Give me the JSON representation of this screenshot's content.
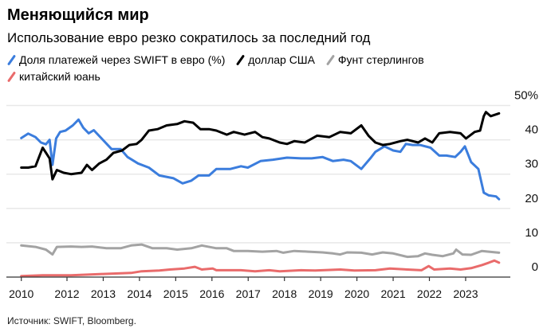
{
  "header": {
    "title": "Меняющийся мир",
    "subtitle": "Использование евро резко сократилось за последний год"
  },
  "source": "Источник: SWIFT, Bloomberg.",
  "chart_data": {
    "type": "line",
    "title": "Меняющийся мир",
    "subtitle": "Использование евро резко сократилось за последний год",
    "ylim": [
      0,
      50
    ],
    "y_ticks": [
      {
        "v": 50,
        "label": "50%"
      },
      {
        "v": 40,
        "label": "40"
      },
      {
        "v": 30,
        "label": "30"
      },
      {
        "v": 20,
        "label": "20"
      },
      {
        "v": 10,
        "label": "10"
      },
      {
        "v": 0,
        "label": "0"
      }
    ],
    "x_ticks": [
      {
        "x": 2010.74,
        "label": "2010"
      },
      {
        "x": 2012,
        "label": "2012"
      },
      {
        "x": 2013,
        "label": "2013"
      },
      {
        "x": 2014,
        "label": "2014"
      },
      {
        "x": 2015,
        "label": "2015"
      },
      {
        "x": 2016,
        "label": "2016"
      },
      {
        "x": 2017,
        "label": "2017"
      },
      {
        "x": 2018,
        "label": "2018"
      },
      {
        "x": 2019,
        "label": "2019"
      },
      {
        "x": 2020,
        "label": "2020"
      },
      {
        "x": 2021,
        "label": "2021"
      },
      {
        "x": 2022,
        "label": "2022"
      },
      {
        "x": 2023,
        "label": "2023"
      }
    ],
    "grid": true,
    "legend_position": "top",
    "series": [
      {
        "name": "Доля платежей через SWIFT в евро (%)",
        "color": "#3b7ddd",
        "points": [
          [
            2010.74,
            40.5
          ],
          [
            2010.93,
            41.8
          ],
          [
            2011.13,
            40.8
          ],
          [
            2011.28,
            39.2
          ],
          [
            2011.42,
            38.7
          ],
          [
            2011.52,
            40
          ],
          [
            2011.6,
            32.7
          ],
          [
            2011.7,
            40.4
          ],
          [
            2011.81,
            42.3
          ],
          [
            2011.96,
            42.7
          ],
          [
            2012.16,
            44.2
          ],
          [
            2012.32,
            45.9
          ],
          [
            2012.45,
            43.5
          ],
          [
            2012.6,
            41.9
          ],
          [
            2012.74,
            42.8
          ],
          [
            2012.99,
            40
          ],
          [
            2013.23,
            37.3
          ],
          [
            2013.48,
            37.3
          ],
          [
            2013.67,
            35
          ],
          [
            2013.96,
            33.1
          ],
          [
            2014.26,
            31.9
          ],
          [
            2014.55,
            29.6
          ],
          [
            2014.94,
            28.8
          ],
          [
            2015.19,
            27.3
          ],
          [
            2015.43,
            28.1
          ],
          [
            2015.63,
            29.6
          ],
          [
            2015.92,
            29.6
          ],
          [
            2016.12,
            31.5
          ],
          [
            2016.51,
            31.5
          ],
          [
            2016.8,
            32.3
          ],
          [
            2016.99,
            31.9
          ],
          [
            2017.34,
            33.8
          ],
          [
            2017.68,
            34.2
          ],
          [
            2018.07,
            34.8
          ],
          [
            2018.46,
            34.6
          ],
          [
            2018.75,
            34.6
          ],
          [
            2019.05,
            35
          ],
          [
            2019.34,
            33.8
          ],
          [
            2019.63,
            34.2
          ],
          [
            2019.83,
            33.8
          ],
          [
            2020.12,
            31.5
          ],
          [
            2020.37,
            34.6
          ],
          [
            2020.51,
            36.5
          ],
          [
            2020.76,
            38.1
          ],
          [
            2021.0,
            36.9
          ],
          [
            2021.2,
            36.5
          ],
          [
            2021.35,
            38.8
          ],
          [
            2021.54,
            38.5
          ],
          [
            2021.74,
            38.5
          ],
          [
            2022.03,
            37.7
          ],
          [
            2022.27,
            35.4
          ],
          [
            2022.47,
            35.4
          ],
          [
            2022.71,
            35
          ],
          [
            2022.86,
            36.5
          ],
          [
            2022.98,
            38.1
          ],
          [
            2023.15,
            33.5
          ],
          [
            2023.35,
            31.5
          ],
          [
            2023.5,
            24.6
          ],
          [
            2023.64,
            23.8
          ],
          [
            2023.84,
            23.5
          ],
          [
            2023.92,
            22.7
          ]
        ]
      },
      {
        "name": "доллар США",
        "color": "#000000",
        "points": [
          [
            2010.74,
            31.9
          ],
          [
            2010.93,
            31.9
          ],
          [
            2011.13,
            32.3
          ],
          [
            2011.33,
            37.7
          ],
          [
            2011.52,
            34.6
          ],
          [
            2011.6,
            28.5
          ],
          [
            2011.72,
            31.2
          ],
          [
            2011.91,
            30.4
          ],
          [
            2012.11,
            30
          ],
          [
            2012.4,
            30.4
          ],
          [
            2012.55,
            32.7
          ],
          [
            2012.69,
            31.2
          ],
          [
            2012.89,
            33.1
          ],
          [
            2013.09,
            34.2
          ],
          [
            2013.28,
            36.2
          ],
          [
            2013.52,
            36.9
          ],
          [
            2013.72,
            38.5
          ],
          [
            2013.92,
            38.8
          ],
          [
            2014.06,
            40
          ],
          [
            2014.26,
            42.7
          ],
          [
            2014.5,
            43.1
          ],
          [
            2014.75,
            44.2
          ],
          [
            2015.04,
            44.6
          ],
          [
            2015.24,
            45.4
          ],
          [
            2015.48,
            45
          ],
          [
            2015.68,
            43.1
          ],
          [
            2015.92,
            43.1
          ],
          [
            2016.12,
            42.7
          ],
          [
            2016.41,
            41.5
          ],
          [
            2016.6,
            42.3
          ],
          [
            2016.9,
            41.5
          ],
          [
            2017.19,
            42.3
          ],
          [
            2017.39,
            40.8
          ],
          [
            2017.58,
            40.4
          ],
          [
            2017.87,
            39.2
          ],
          [
            2018.07,
            38.8
          ],
          [
            2018.27,
            39.6
          ],
          [
            2018.56,
            39.2
          ],
          [
            2018.9,
            41.2
          ],
          [
            2019.24,
            40.8
          ],
          [
            2019.54,
            42.3
          ],
          [
            2019.83,
            41.9
          ],
          [
            2020.12,
            44.2
          ],
          [
            2020.32,
            41.2
          ],
          [
            2020.51,
            39.2
          ],
          [
            2020.71,
            38.5
          ],
          [
            2020.91,
            38.8
          ],
          [
            2021.2,
            39.6
          ],
          [
            2021.39,
            40
          ],
          [
            2021.69,
            39.2
          ],
          [
            2021.88,
            40.4
          ],
          [
            2022.08,
            39.2
          ],
          [
            2022.27,
            41.9
          ],
          [
            2022.57,
            42.3
          ],
          [
            2022.86,
            41.9
          ],
          [
            2023.01,
            40.4
          ],
          [
            2023.25,
            42.3
          ],
          [
            2023.4,
            42.7
          ],
          [
            2023.5,
            46.9
          ],
          [
            2023.56,
            48.1
          ],
          [
            2023.69,
            46.9
          ],
          [
            2023.92,
            47.7
          ]
        ]
      },
      {
        "name": "Фунт стерлингов",
        "color": "#a3a3a3",
        "points": [
          [
            2010.74,
            9.2
          ],
          [
            2011.13,
            8.8
          ],
          [
            2011.42,
            8
          ],
          [
            2011.6,
            6.6
          ],
          [
            2011.72,
            8.8
          ],
          [
            2012.11,
            8.9
          ],
          [
            2012.4,
            8.8
          ],
          [
            2012.69,
            8.9
          ],
          [
            2013.09,
            8.4
          ],
          [
            2013.48,
            8.4
          ],
          [
            2013.77,
            9.2
          ],
          [
            2014.06,
            9.5
          ],
          [
            2014.36,
            8.4
          ],
          [
            2014.75,
            8.4
          ],
          [
            2015.04,
            8
          ],
          [
            2015.43,
            8.4
          ],
          [
            2015.72,
            9.2
          ],
          [
            2016.12,
            8.4
          ],
          [
            2016.41,
            8.4
          ],
          [
            2016.6,
            7.6
          ],
          [
            2016.99,
            7.6
          ],
          [
            2017.39,
            7.4
          ],
          [
            2017.78,
            7.6
          ],
          [
            2017.97,
            7.1
          ],
          [
            2018.27,
            7.6
          ],
          [
            2018.66,
            7.4
          ],
          [
            2019.05,
            7.2
          ],
          [
            2019.34,
            6.9
          ],
          [
            2019.54,
            6.6
          ],
          [
            2019.73,
            7.2
          ],
          [
            2020.12,
            7.1
          ],
          [
            2020.42,
            6.6
          ],
          [
            2020.71,
            7.2
          ],
          [
            2021.0,
            6.9
          ],
          [
            2021.39,
            5.9
          ],
          [
            2021.69,
            6.1
          ],
          [
            2021.88,
            6.9
          ],
          [
            2022.08,
            6.5
          ],
          [
            2022.37,
            6.1
          ],
          [
            2022.66,
            6.9
          ],
          [
            2022.74,
            8
          ],
          [
            2022.91,
            6.6
          ],
          [
            2023.15,
            6.5
          ],
          [
            2023.45,
            7.6
          ],
          [
            2023.64,
            7.4
          ],
          [
            2023.92,
            7.1
          ]
        ]
      },
      {
        "name": "китайский юань",
        "color": "#e96b6b",
        "points": [
          [
            2010.74,
            0.3
          ],
          [
            2011.33,
            0.5
          ],
          [
            2012.11,
            0.5
          ],
          [
            2012.99,
            0.9
          ],
          [
            2013.77,
            1.2
          ],
          [
            2014.06,
            1.7
          ],
          [
            2014.55,
            1.9
          ],
          [
            2014.84,
            2.2
          ],
          [
            2015.24,
            2.5
          ],
          [
            2015.53,
            3
          ],
          [
            2015.72,
            2.2
          ],
          [
            2016.02,
            2.5
          ],
          [
            2016.12,
            2
          ],
          [
            2016.8,
            2
          ],
          [
            2017.19,
            1.7
          ],
          [
            2017.58,
            2
          ],
          [
            2017.87,
            1.7
          ],
          [
            2018.46,
            2
          ],
          [
            2018.85,
            1.9
          ],
          [
            2019.54,
            2.2
          ],
          [
            2019.93,
            1.9
          ],
          [
            2020.51,
            2
          ],
          [
            2020.91,
            2.5
          ],
          [
            2021.39,
            2.2
          ],
          [
            2021.78,
            2
          ],
          [
            2021.98,
            3.2
          ],
          [
            2022.13,
            2.2
          ],
          [
            2022.57,
            2.5
          ],
          [
            2022.86,
            2.2
          ],
          [
            2023.15,
            2.6
          ],
          [
            2023.45,
            3.5
          ],
          [
            2023.64,
            4.2
          ],
          [
            2023.79,
            4.8
          ],
          [
            2023.92,
            4.2
          ]
        ]
      }
    ]
  }
}
